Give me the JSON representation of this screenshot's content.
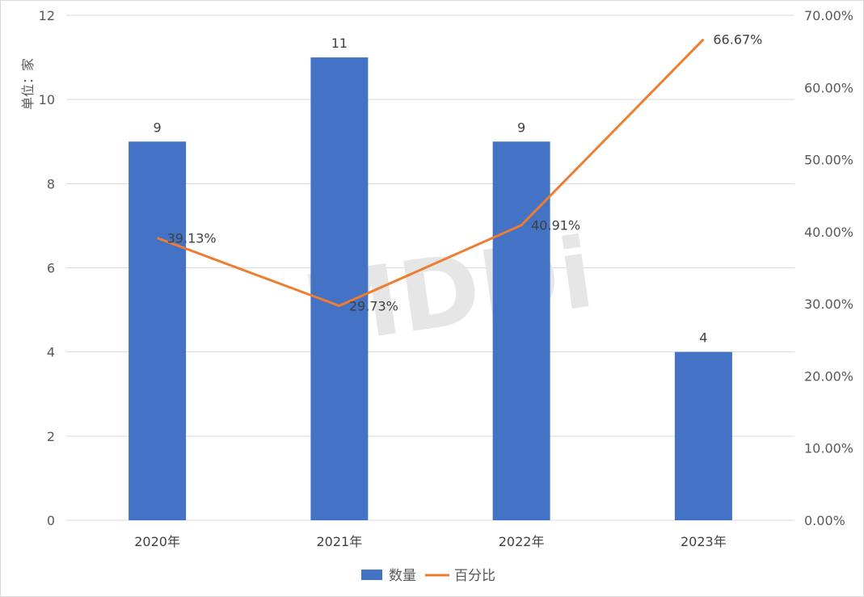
{
  "chart_data": {
    "type": "bar+line",
    "categories": [
      "2020年",
      "2021年",
      "2022年",
      "2023年"
    ],
    "series": [
      {
        "name": "数量",
        "type": "bar",
        "axis": "left",
        "values": [
          9,
          11,
          9,
          4
        ],
        "labels": [
          "9",
          "11",
          "9",
          "4"
        ]
      },
      {
        "name": "百分比",
        "type": "line",
        "axis": "right",
        "values": [
          39.13,
          29.73,
          40.91,
          66.67
        ],
        "labels": [
          "39.13%",
          "29.73%",
          "40.91%",
          "66.67%"
        ]
      }
    ],
    "ylabel": "单位：家",
    "ylim": [
      0,
      12
    ],
    "y_ticks": [
      "0",
      "2",
      "4",
      "6",
      "8",
      "10",
      "12"
    ],
    "y2lim": [
      0,
      70
    ],
    "y2_ticks": [
      "0.00%",
      "10.00%",
      "20.00%",
      "30.00%",
      "40.00%",
      "50.00%",
      "60.00%",
      "70.00%"
    ],
    "grid": true,
    "legend_position": "bottom",
    "watermark": "MDDi",
    "colors": {
      "bar": "#4472c4",
      "line": "#ed7d31",
      "grid": "#d9d9d9"
    }
  }
}
